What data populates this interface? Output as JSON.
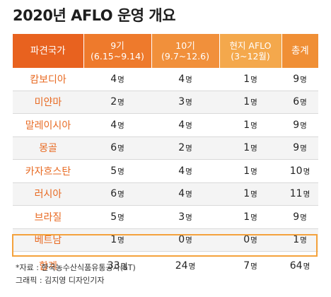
{
  "title": "2020년 AFLO 운영 개요",
  "headers": [
    {
      "line1": "파견국가",
      "line2": ""
    },
    {
      "line1": "9기",
      "line2": "(6.15~9.14)"
    },
    {
      "line1": "10기",
      "line2": "(9.7~12.6)"
    },
    {
      "line1": "현지 AFLO",
      "line2": "(3~12월)"
    },
    {
      "line1": "총계",
      "line2": ""
    }
  ],
  "unit": "명",
  "rows": [
    {
      "country": "캄보디아",
      "c9": "4",
      "c10": "4",
      "local": "1",
      "total": "9"
    },
    {
      "country": "미얀마",
      "c9": "2",
      "c10": "3",
      "local": "1",
      "total": "6"
    },
    {
      "country": "말레이시아",
      "c9": "4",
      "c10": "4",
      "local": "1",
      "total": "9"
    },
    {
      "country": "몽골",
      "c9": "6",
      "c10": "2",
      "local": "1",
      "total": "9"
    },
    {
      "country": "카자흐스탄",
      "c9": "5",
      "c10": "4",
      "local": "1",
      "total": "10"
    },
    {
      "country": "러시아",
      "c9": "6",
      "c10": "4",
      "local": "1",
      "total": "11"
    },
    {
      "country": "브라질",
      "c9": "5",
      "c10": "3",
      "local": "1",
      "total": "9"
    },
    {
      "country": "베트남",
      "c9": "1",
      "c10": "0",
      "local": "0",
      "total": "1"
    }
  ],
  "total": {
    "label": "합계",
    "c9": "33",
    "c10": "24",
    "local": "7",
    "total": "64"
  },
  "notes": {
    "source": "*자료 : 한국농수산식품유통공사(aT)",
    "credit": "그래픽 : 김지영 디자인기자"
  }
}
